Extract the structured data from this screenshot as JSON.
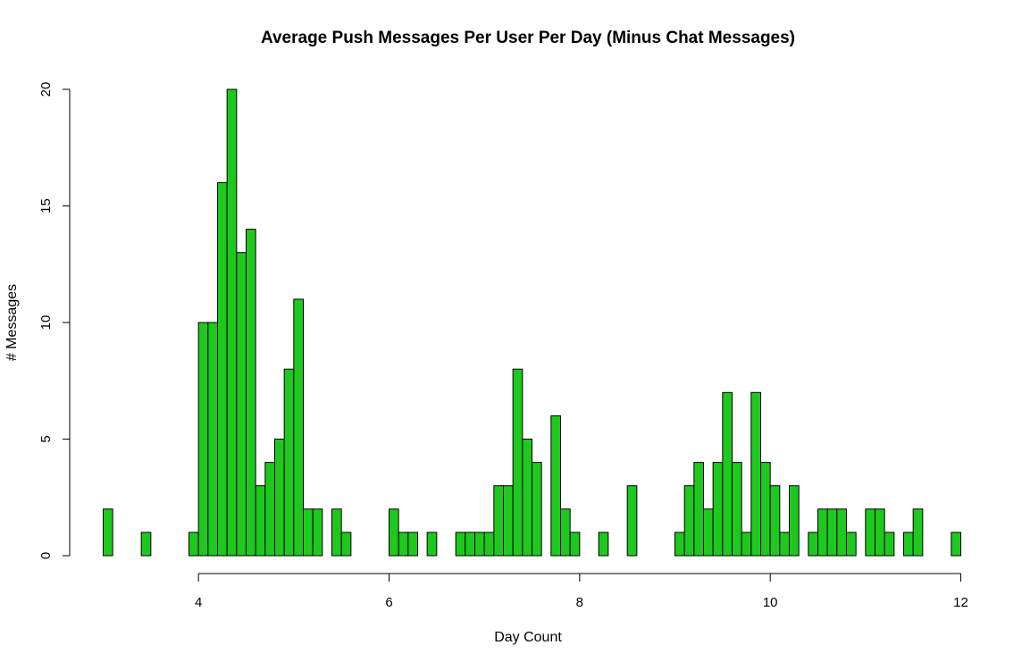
{
  "chart_data": {
    "type": "bar",
    "title": "Average Push Messages Per User Per Day (Minus Chat Messages)",
    "xlabel": "Day Count",
    "ylabel": "# Messages",
    "xlim": [
      3,
      12
    ],
    "ylim": [
      0,
      20
    ],
    "x_ticks": [
      "4",
      "6",
      "8",
      "10",
      "12"
    ],
    "y_ticks": [
      "0",
      "5",
      "10",
      "15",
      "20"
    ],
    "bin_start": 3.0,
    "bin_width": 0.1,
    "bar_color": "#1ec81e",
    "grid": false,
    "legend": "none",
    "values": [
      2,
      0,
      0,
      0,
      1,
      0,
      0,
      0,
      0,
      1,
      10,
      10,
      16,
      20,
      13,
      14,
      3,
      4,
      5,
      8,
      11,
      2,
      2,
      0,
      2,
      1,
      0,
      0,
      0,
      0,
      2,
      1,
      1,
      0,
      1,
      0,
      0,
      1,
      1,
      1,
      1,
      3,
      3,
      8,
      5,
      4,
      0,
      6,
      2,
      1,
      0,
      0,
      1,
      0,
      0,
      3,
      0,
      0,
      0,
      0,
      1,
      3,
      4,
      2,
      4,
      7,
      4,
      1,
      7,
      4,
      3,
      1,
      3,
      0,
      1,
      2,
      2,
      2,
      1,
      0,
      2,
      2,
      1,
      0,
      1,
      2,
      0,
      0,
      0,
      1
    ]
  }
}
